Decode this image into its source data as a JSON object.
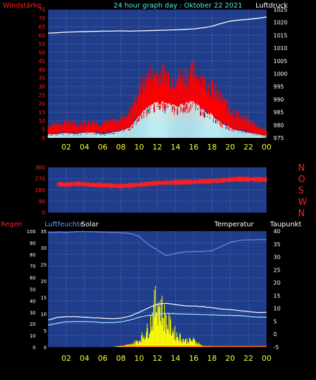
{
  "header": {
    "left_label": "Windstärke",
    "title": "24 hour graph day : Oktober 22 2021",
    "right_label": "Luftdruck"
  },
  "colors": {
    "plot_bg": "#1f3d8a",
    "grid": "#6a86c8",
    "wind_gust": "#ff0000",
    "wind_avg": "#c8ffff",
    "pressure": "#ffffff",
    "direction": "#ff2020",
    "temperature": "#ffffff",
    "dewpoint": "#a0e8ff",
    "humidity": "#6e7ff0",
    "solar": "#ffff00",
    "rain": "#ff6a00",
    "x_ticks": "#ffff33"
  },
  "chart_data": [
    {
      "type": "line",
      "name": "wind-pressure",
      "x_tick_labels": [
        "02",
        "04",
        "06",
        "08",
        "10",
        "12",
        "14",
        "16",
        "18",
        "20",
        "22",
        "00"
      ],
      "left_axis": {
        "label": "Windstärke",
        "range": [
          0,
          75
        ],
        "ticks": [
          "0",
          "5",
          "10",
          "15",
          "20",
          "25",
          "30",
          "35",
          "40",
          "45",
          "50",
          "55",
          "60",
          "65",
          "70",
          "75"
        ]
      },
      "right_axis": {
        "label": "Luftdruck",
        "range": [
          975,
          1025
        ],
        "ticks": [
          "975",
          "980",
          "985",
          "990",
          "995",
          "1000",
          "1005",
          "1010",
          "1015",
          "1020",
          "1025"
        ]
      },
      "hours": [
        0,
        1,
        2,
        3,
        4,
        5,
        6,
        7,
        8,
        9,
        10,
        11,
        12,
        13,
        14,
        15,
        16,
        17,
        18,
        19,
        20,
        21,
        22,
        23,
        24
      ],
      "gust_max": [
        9,
        10,
        12,
        10,
        11,
        12,
        10,
        12,
        14,
        18,
        33,
        43,
        45,
        44,
        42,
        44,
        46,
        40,
        36,
        28,
        22,
        16,
        12,
        9,
        5
      ],
      "gust_mean": [
        5,
        6,
        7,
        6,
        6,
        7,
        6,
        7,
        9,
        12,
        22,
        28,
        30,
        29,
        27,
        29,
        30,
        26,
        22,
        17,
        12,
        9,
        7,
        5,
        3
      ],
      "wind_avg_max": [
        2,
        2,
        3,
        2,
        3,
        3,
        2,
        3,
        4,
        6,
        13,
        19,
        22,
        21,
        19,
        21,
        22,
        17,
        14,
        9,
        6,
        4,
        3,
        2,
        1
      ],
      "wind_avg_mean": [
        1,
        1,
        2,
        1,
        2,
        2,
        1,
        2,
        3,
        4,
        9,
        13,
        15,
        14,
        13,
        14,
        15,
        12,
        9,
        6,
        4,
        3,
        2,
        1,
        0
      ],
      "pressure": [
        1015.8,
        1016.0,
        1016.2,
        1016.3,
        1016.4,
        1016.5,
        1016.6,
        1016.6,
        1016.7,
        1016.6,
        1016.7,
        1016.8,
        1016.9,
        1017.0,
        1017.1,
        1017.3,
        1017.5,
        1017.9,
        1018.5,
        1019.6,
        1020.5,
        1020.9,
        1021.2,
        1021.6,
        1022.1
      ]
    },
    {
      "type": "scatter",
      "name": "wind-direction",
      "x_tick_labels": [],
      "left_axis": {
        "range": [
          0,
          360
        ],
        "ticks": [
          "0",
          "90",
          "180",
          "270",
          "360"
        ]
      },
      "compass_labels": [
        "N",
        "W",
        "S",
        "O",
        "N"
      ],
      "hours": [
        0,
        1,
        2,
        3,
        4,
        5,
        6,
        7,
        8,
        9,
        10,
        11,
        12,
        13,
        14,
        15,
        16,
        17,
        18,
        19,
        20,
        21,
        22,
        23,
        24
      ],
      "direction": [
        225,
        228,
        222,
        230,
        226,
        220,
        218,
        215,
        212,
        215,
        222,
        228,
        235,
        238,
        240,
        242,
        245,
        248,
        250,
        255,
        262,
        266,
        265,
        264,
        263
      ]
    },
    {
      "type": "line",
      "name": "humidity-temperature",
      "x_tick_labels": [
        "02",
        "04",
        "06",
        "08",
        "10",
        "12",
        "14",
        "16",
        "18",
        "20",
        "22",
        "00"
      ],
      "left_axis": {
        "label": "Regen",
        "range": [
          0,
          100
        ],
        "ticks": [
          "0",
          "10",
          "20",
          "30",
          "40",
          "50",
          "60",
          "70",
          "80",
          "90",
          "100"
        ]
      },
      "left_axis_2": {
        "label": "Luftfeuchte",
        "range": [
          0,
          35
        ],
        "ticks": [
          "0",
          "5",
          "10",
          "15",
          "20",
          "25",
          "30",
          "35"
        ]
      },
      "solar_label": "Solar",
      "right_axis": {
        "label": "Temperatur",
        "range": [
          -5,
          40
        ],
        "ticks": [
          "-5",
          "0",
          "5",
          "10",
          "15",
          "20",
          "25",
          "30",
          "35",
          "40"
        ]
      },
      "dewpoint_label": "Taupunkt",
      "hours": [
        0,
        1,
        2,
        3,
        4,
        5,
        6,
        7,
        8,
        9,
        10,
        11,
        12,
        13,
        14,
        15,
        16,
        17,
        18,
        19,
        20,
        21,
        22,
        23,
        24
      ],
      "humidity": [
        34.5,
        34.7,
        34.6,
        34.8,
        34.9,
        34.8,
        34.7,
        34.6,
        34.5,
        34.3,
        33.4,
        31.0,
        29.3,
        27.6,
        28.3,
        28.7,
        28.9,
        28.9,
        29.1,
        30.3,
        31.6,
        32.2,
        32.4,
        32.4,
        32.4
      ],
      "temperature": [
        5.5,
        6.5,
        6.8,
        6.8,
        6.6,
        6.4,
        6.2,
        6.0,
        6.2,
        7.0,
        8.5,
        10.2,
        11.6,
        12.0,
        11.5,
        11.0,
        10.9,
        10.7,
        10.3,
        9.8,
        9.5,
        9.2,
        8.8,
        8.4,
        8.5
      ],
      "dewpoint": [
        3.5,
        4.3,
        4.8,
        4.9,
        4.9,
        4.8,
        4.5,
        4.5,
        4.8,
        5.5,
        6.6,
        7.3,
        7.8,
        8.0,
        7.9,
        7.8,
        7.7,
        7.6,
        7.5,
        7.4,
        7.3,
        7.2,
        6.9,
        6.6,
        6.6
      ],
      "solar": [
        0,
        0,
        0,
        0,
        0,
        0,
        0,
        0,
        0.5,
        1,
        3,
        8,
        22,
        12,
        6,
        3,
        3,
        0.5,
        0,
        0,
        0,
        0,
        0,
        0,
        0
      ],
      "rain": [
        0,
        0,
        0,
        0,
        0,
        0,
        0,
        0,
        0,
        0,
        0,
        0,
        0,
        0,
        0,
        0,
        0,
        0,
        0,
        0,
        0,
        0,
        0,
        0,
        0
      ]
    }
  ]
}
